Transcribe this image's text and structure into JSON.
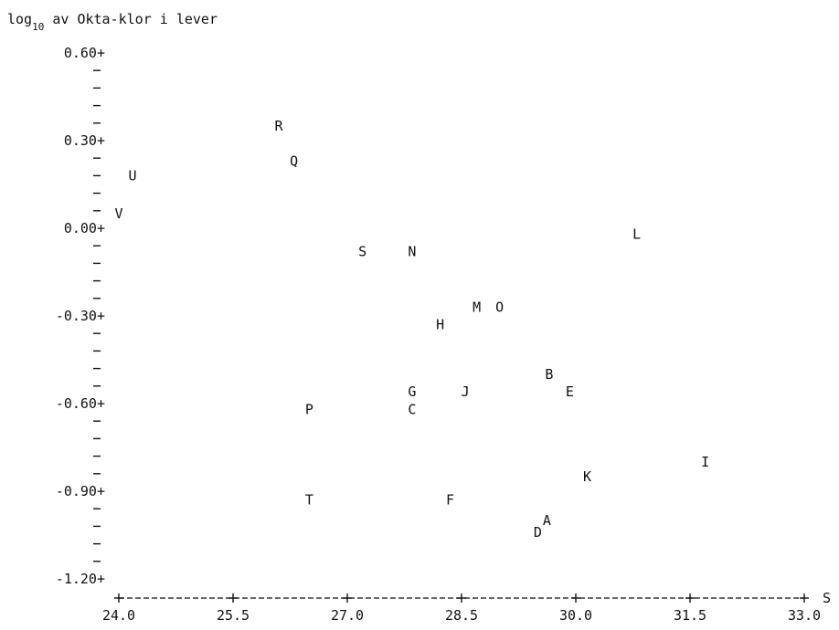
{
  "chart_data": {
    "type": "scatter",
    "title": {
      "prefix": "log",
      "subscript": "10",
      "rest": " av Okta-klor i lever"
    },
    "xlabel": "S",
    "xlim": [
      24.0,
      33.0
    ],
    "ylim": [
      -1.2,
      0.6
    ],
    "x_ticks": [
      {
        "value": 24.0,
        "label": "24.0"
      },
      {
        "value": 25.5,
        "label": "25.5"
      },
      {
        "value": 27.0,
        "label": "27.0"
      },
      {
        "value": 28.5,
        "label": "28.5"
      },
      {
        "value": 30.0,
        "label": "30.0"
      },
      {
        "value": 31.5,
        "label": "31.5"
      },
      {
        "value": 33.0,
        "label": "33.0"
      }
    ],
    "y_ticks": [
      {
        "value": 0.6,
        "label": "0.60+"
      },
      {
        "value": 0.3,
        "label": "0.30+"
      },
      {
        "value": 0.0,
        "label": "0.00+"
      },
      {
        "value": -0.3,
        "label": "-0.30+"
      },
      {
        "value": -0.6,
        "label": "-0.60+"
      },
      {
        "value": -0.9,
        "label": "-0.90+"
      },
      {
        "value": -1.2,
        "label": "-1.20+"
      }
    ],
    "points": [
      {
        "label": "A",
        "x": 29.62,
        "y": -1.0
      },
      {
        "label": "B",
        "x": 29.65,
        "y": -0.5
      },
      {
        "label": "C",
        "x": 27.85,
        "y": -0.62
      },
      {
        "label": "D",
        "x": 29.5,
        "y": -1.04
      },
      {
        "label": "E",
        "x": 29.92,
        "y": -0.56
      },
      {
        "label": "F",
        "x": 28.35,
        "y": -0.93
      },
      {
        "label": "G",
        "x": 27.85,
        "y": -0.56
      },
      {
        "label": "H",
        "x": 28.22,
        "y": -0.33
      },
      {
        "label": "I",
        "x": 31.7,
        "y": -0.8
      },
      {
        "label": "J",
        "x": 28.55,
        "y": -0.56
      },
      {
        "label": "K",
        "x": 30.15,
        "y": -0.85
      },
      {
        "label": "L",
        "x": 30.8,
        "y": -0.02
      },
      {
        "label": "M",
        "x": 28.7,
        "y": -0.27
      },
      {
        "label": "N",
        "x": 27.85,
        "y": -0.08
      },
      {
        "label": "O",
        "x": 29.0,
        "y": -0.27
      },
      {
        "label": "P",
        "x": 26.5,
        "y": -0.62
      },
      {
        "label": "Q",
        "x": 26.3,
        "y": 0.23
      },
      {
        "label": "R",
        "x": 26.1,
        "y": 0.35
      },
      {
        "label": "S",
        "x": 27.2,
        "y": -0.08
      },
      {
        "label": "T",
        "x": 26.5,
        "y": -0.93
      },
      {
        "label": "U",
        "x": 24.18,
        "y": 0.18
      },
      {
        "label": "V",
        "x": 24.0,
        "y": 0.05
      }
    ]
  }
}
